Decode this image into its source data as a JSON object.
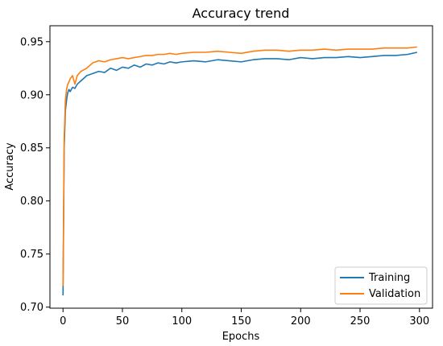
{
  "chart_data": {
    "type": "line",
    "title": "Accuracy trend",
    "xlabel": "Epochs",
    "ylabel": "Accuracy",
    "xlim": [
      -11,
      311
    ],
    "ylim": [
      0.699,
      0.965
    ],
    "xticks": [
      0,
      50,
      100,
      150,
      200,
      250,
      300
    ],
    "yticks": [
      0.7,
      0.75,
      0.8,
      0.85,
      0.9,
      0.95
    ],
    "grid": false,
    "legend_position": "lower-right",
    "series": [
      {
        "name": "Training",
        "color": "#1f77b4",
        "x": [
          0,
          1,
          2,
          3,
          4,
          5,
          6,
          8,
          10,
          12,
          15,
          20,
          25,
          30,
          35,
          40,
          45,
          50,
          55,
          60,
          65,
          70,
          75,
          80,
          85,
          90,
          95,
          100,
          110,
          120,
          130,
          140,
          150,
          160,
          170,
          180,
          190,
          200,
          210,
          220,
          230,
          240,
          250,
          260,
          270,
          280,
          290,
          298
        ],
        "y": [
          0.711,
          0.85,
          0.885,
          0.895,
          0.902,
          0.905,
          0.903,
          0.907,
          0.906,
          0.91,
          0.913,
          0.918,
          0.92,
          0.922,
          0.921,
          0.925,
          0.923,
          0.926,
          0.925,
          0.928,
          0.926,
          0.929,
          0.928,
          0.93,
          0.929,
          0.931,
          0.93,
          0.931,
          0.932,
          0.931,
          0.933,
          0.932,
          0.931,
          0.933,
          0.934,
          0.934,
          0.933,
          0.935,
          0.934,
          0.935,
          0.935,
          0.936,
          0.935,
          0.936,
          0.937,
          0.937,
          0.938,
          0.94
        ]
      },
      {
        "name": "Validation",
        "color": "#ff7f0e",
        "x": [
          0,
          1,
          2,
          3,
          4,
          5,
          6,
          8,
          10,
          12,
          15,
          20,
          25,
          30,
          35,
          40,
          45,
          50,
          55,
          60,
          65,
          70,
          75,
          80,
          85,
          90,
          95,
          100,
          110,
          120,
          130,
          140,
          150,
          160,
          170,
          180,
          190,
          200,
          210,
          220,
          230,
          240,
          250,
          260,
          270,
          280,
          290,
          298
        ],
        "y": [
          0.72,
          0.86,
          0.895,
          0.905,
          0.91,
          0.912,
          0.915,
          0.918,
          0.91,
          0.918,
          0.922,
          0.925,
          0.93,
          0.932,
          0.931,
          0.933,
          0.934,
          0.935,
          0.934,
          0.935,
          0.936,
          0.937,
          0.937,
          0.938,
          0.938,
          0.939,
          0.938,
          0.939,
          0.94,
          0.94,
          0.941,
          0.94,
          0.939,
          0.941,
          0.942,
          0.942,
          0.941,
          0.942,
          0.942,
          0.943,
          0.942,
          0.943,
          0.943,
          0.943,
          0.944,
          0.944,
          0.944,
          0.945
        ]
      }
    ]
  }
}
